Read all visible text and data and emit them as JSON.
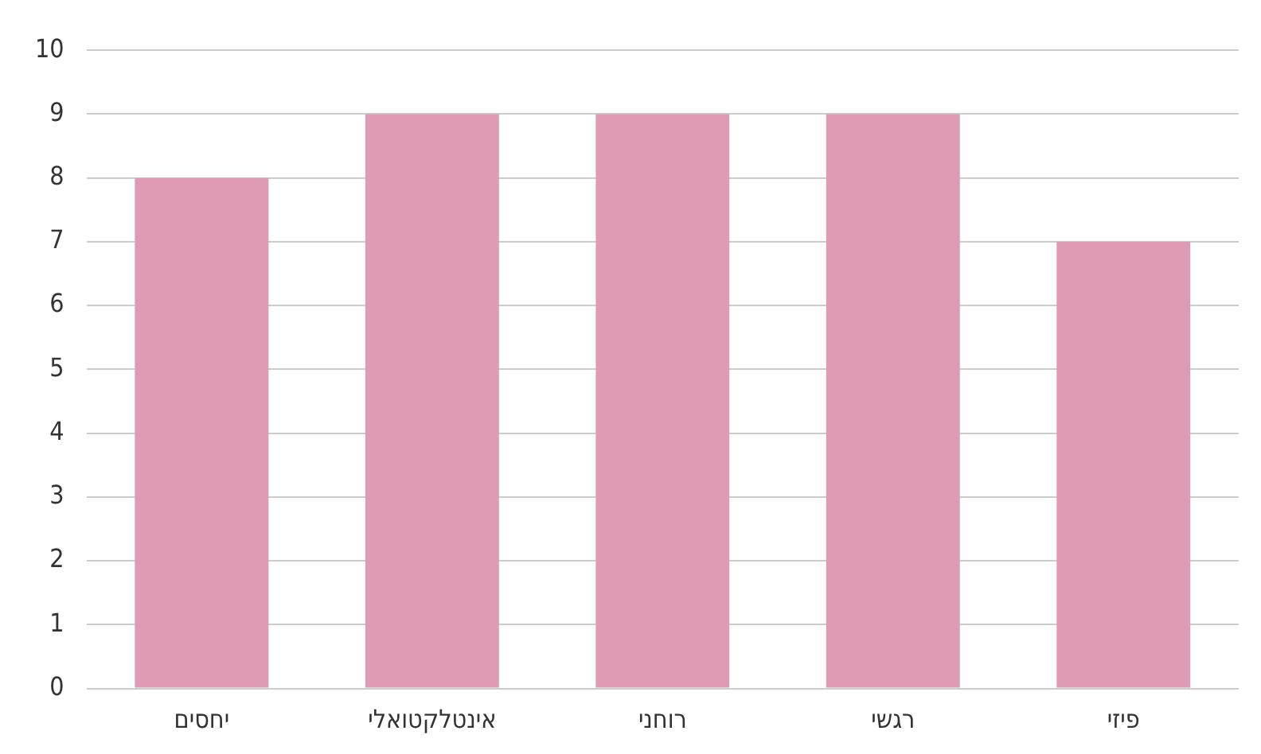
{
  "chart_data": {
    "type": "bar",
    "categories": [
      "יחסים",
      "אינטלקטואלי",
      "רוחני",
      "רגשי",
      "פיזי"
    ],
    "values": [
      8,
      9,
      9,
      9,
      7
    ],
    "color": "#de9bb6",
    "ylim": [
      0,
      10
    ],
    "yticks": [
      0,
      1,
      2,
      3,
      4,
      5,
      6,
      7,
      8,
      9,
      10
    ],
    "grid": "y",
    "legend": false
  }
}
